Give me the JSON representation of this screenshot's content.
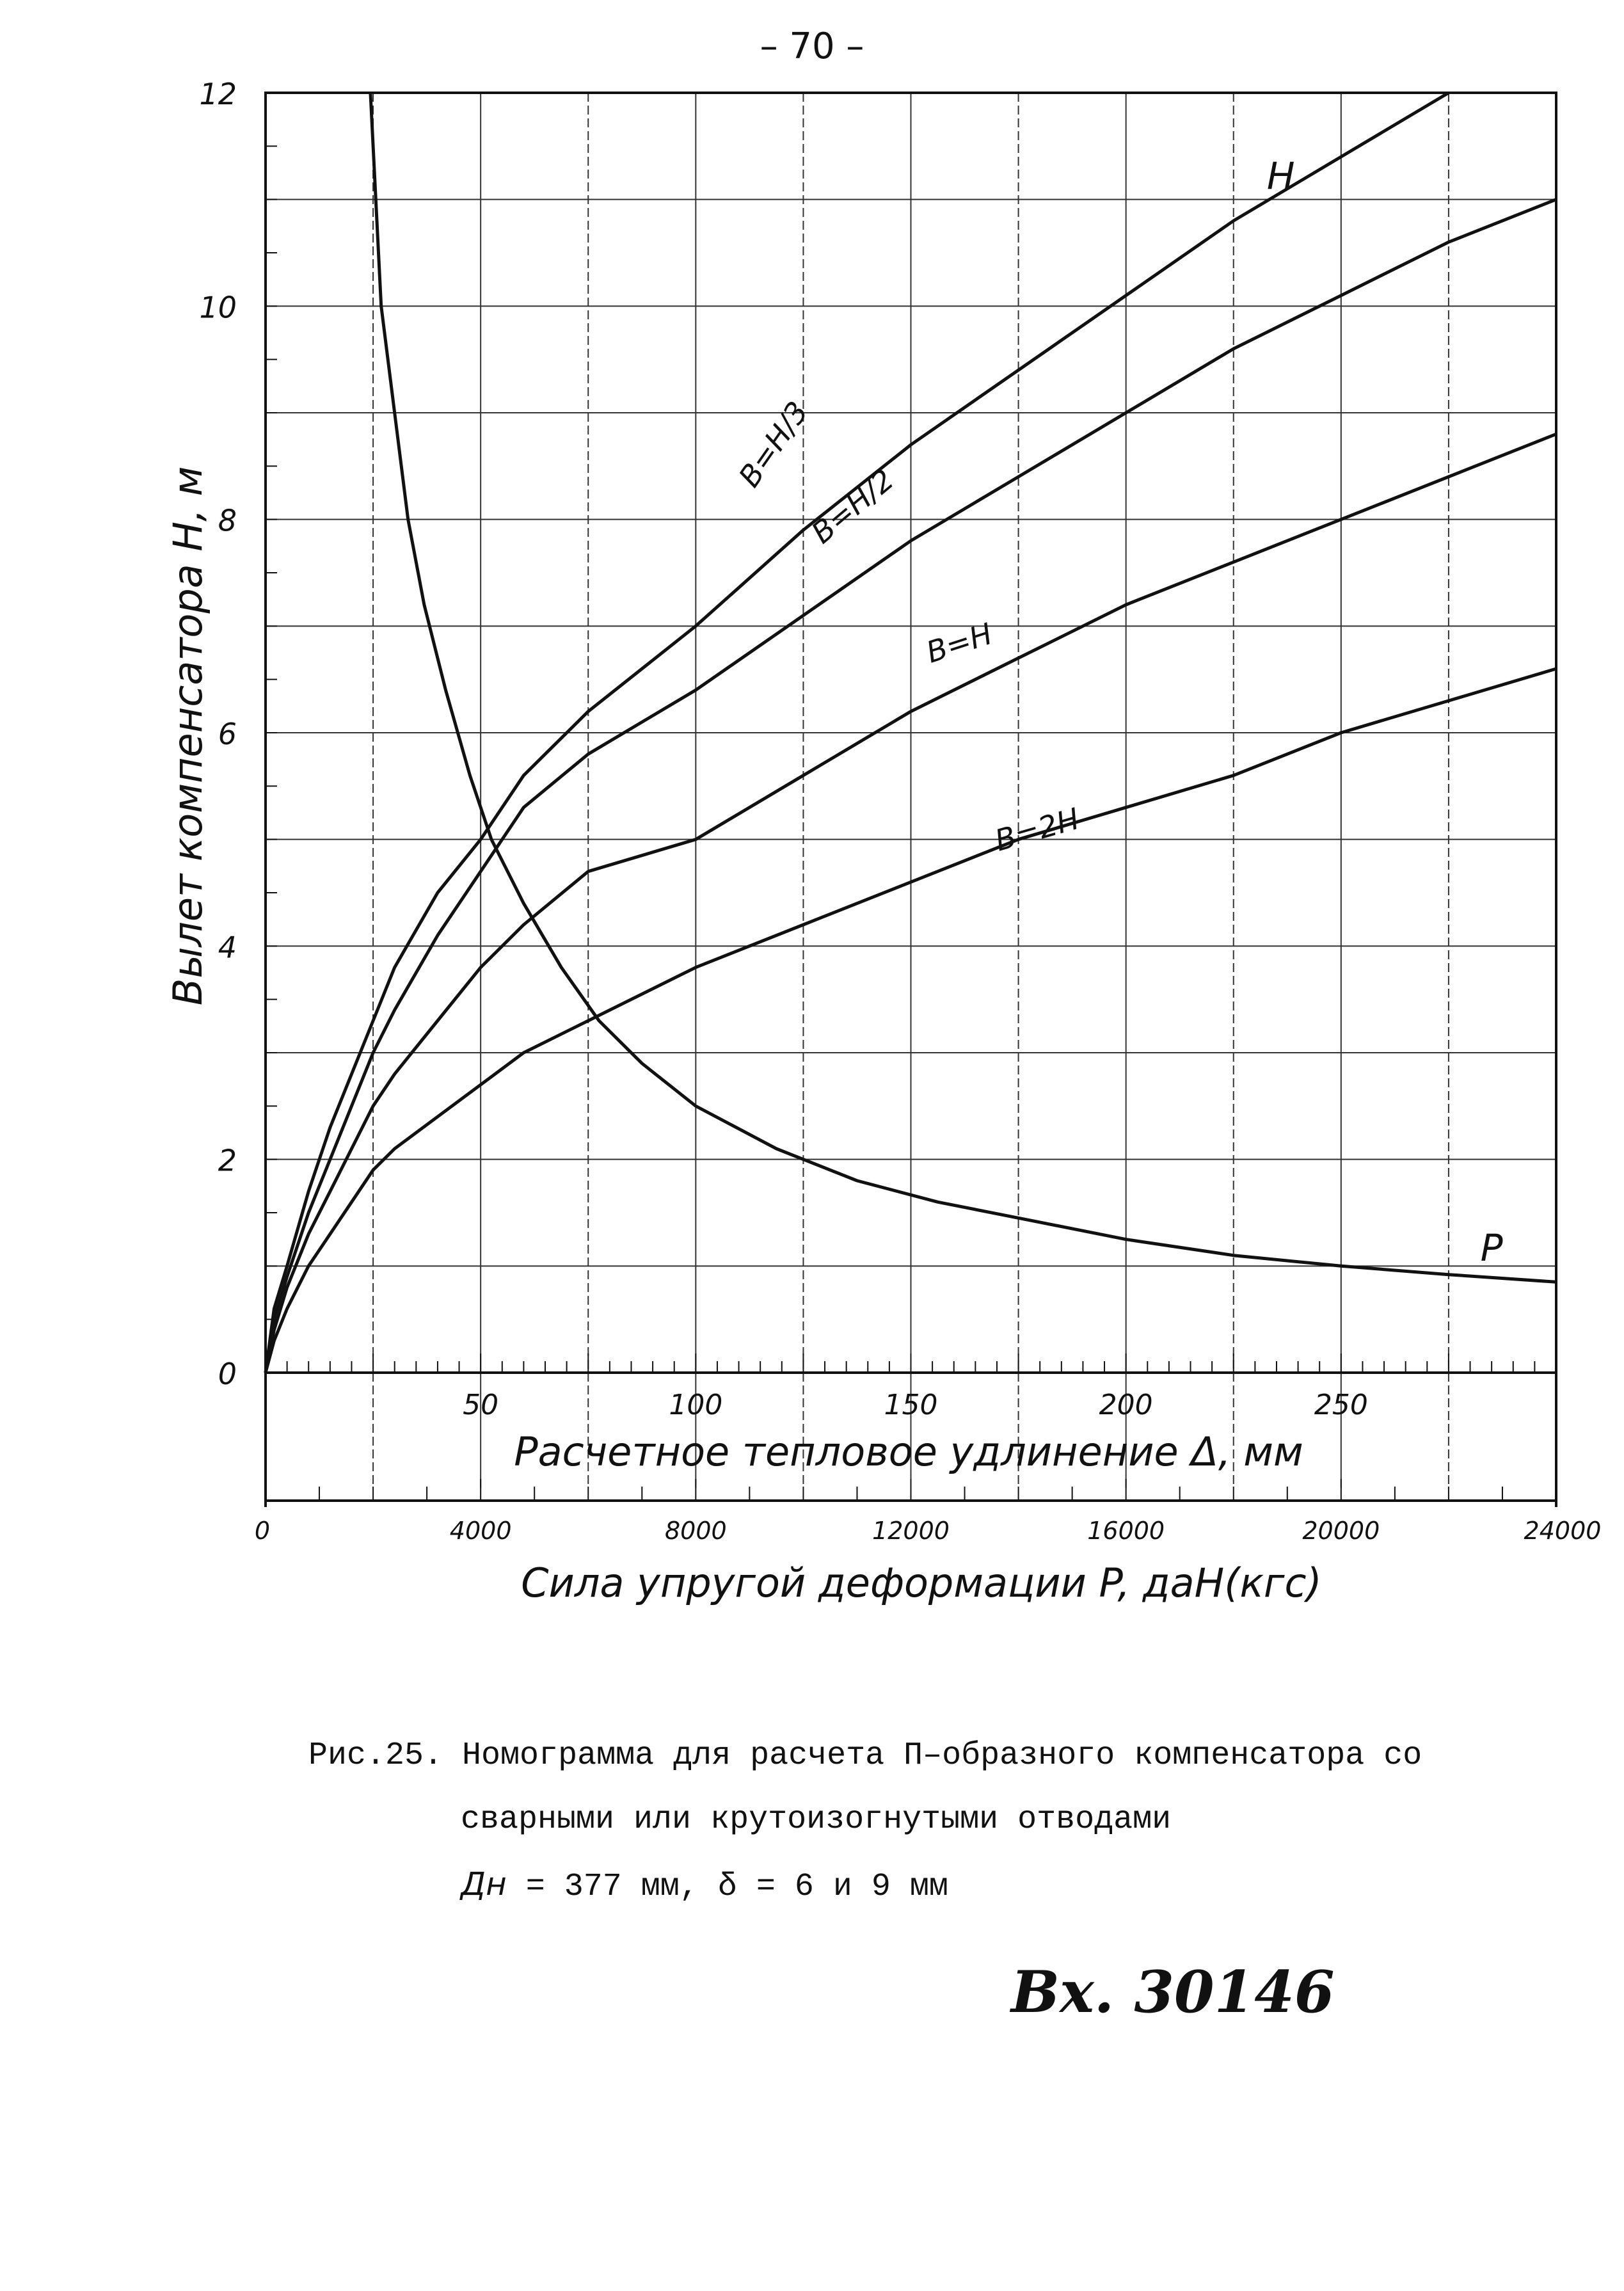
{
  "page_number": "– 70 –",
  "caption": {
    "line1": "Рис.25. Номограмма для расчета П–образного компенсатора со",
    "line2": "сварными или крутоизогнутыми отводами",
    "line3_symbol": "Дн",
    "line3_rest": " = 377 мм,  δ = 6 и 9 мм"
  },
  "inventory_number": "Вх. 30146",
  "chart_data": {
    "type": "line",
    "title": "",
    "ylabel": "Вылет компенсатора  H, м",
    "xlabel_top": "Расчетное тепловое удлинение Δ, мм",
    "xlabel_bottom": "Сила упругой деформации P, даН(кгс)",
    "y_axis": {
      "min": 0,
      "max": 12,
      "ticks": [
        "0",
        "2",
        "4",
        "6",
        "8",
        "10",
        "12"
      ]
    },
    "x_axis_delta": {
      "min": 0,
      "max": 300,
      "unit": "мм",
      "ticks": [
        "50",
        "100",
        "150",
        "200",
        "250"
      ]
    },
    "x_axis_force": {
      "min": 0,
      "max": 24000,
      "unit": "даН(кгс)",
      "ticks": [
        "0",
        "4000",
        "8000",
        "12000",
        "16000",
        "20000",
        "24000"
      ]
    },
    "grid": true,
    "curve_label_H": "H",
    "curve_label_P": "P",
    "series": [
      {
        "name": "B=H/3",
        "axis": "delta",
        "points": [
          [
            0,
            0
          ],
          [
            2,
            0.6
          ],
          [
            5,
            1.0
          ],
          [
            10,
            1.7
          ],
          [
            15,
            2.3
          ],
          [
            20,
            2.8
          ],
          [
            25,
            3.3
          ],
          [
            30,
            3.8
          ],
          [
            40,
            4.5
          ],
          [
            50,
            5.0
          ],
          [
            60,
            5.6
          ],
          [
            75,
            6.2
          ],
          [
            100,
            7.0
          ],
          [
            125,
            7.9
          ],
          [
            150,
            8.7
          ],
          [
            175,
            9.4
          ],
          [
            200,
            10.1
          ],
          [
            225,
            10.8
          ],
          [
            250,
            11.4
          ],
          [
            275,
            12.0
          ]
        ]
      },
      {
        "name": "B=H/2",
        "axis": "delta",
        "points": [
          [
            0,
            0
          ],
          [
            2,
            0.5
          ],
          [
            5,
            0.9
          ],
          [
            10,
            1.5
          ],
          [
            15,
            2.0
          ],
          [
            20,
            2.5
          ],
          [
            25,
            3.0
          ],
          [
            30,
            3.4
          ],
          [
            40,
            4.1
          ],
          [
            50,
            4.7
          ],
          [
            60,
            5.3
          ],
          [
            75,
            5.8
          ],
          [
            100,
            6.4
          ],
          [
            125,
            7.1
          ],
          [
            150,
            7.8
          ],
          [
            175,
            8.4
          ],
          [
            200,
            9.0
          ],
          [
            225,
            9.6
          ],
          [
            250,
            10.1
          ],
          [
            275,
            10.6
          ],
          [
            300,
            11.0
          ]
        ]
      },
      {
        "name": "B=H",
        "axis": "delta",
        "points": [
          [
            0,
            0
          ],
          [
            2,
            0.4
          ],
          [
            5,
            0.8
          ],
          [
            10,
            1.3
          ],
          [
            15,
            1.7
          ],
          [
            20,
            2.1
          ],
          [
            25,
            2.5
          ],
          [
            30,
            2.8
          ],
          [
            40,
            3.3
          ],
          [
            50,
            3.8
          ],
          [
            60,
            4.2
          ],
          [
            75,
            4.7
          ],
          [
            100,
            5.0
          ],
          [
            125,
            5.6
          ],
          [
            150,
            6.2
          ],
          [
            175,
            6.7
          ],
          [
            200,
            7.2
          ],
          [
            225,
            7.6
          ],
          [
            250,
            8.0
          ],
          [
            275,
            8.4
          ],
          [
            300,
            8.8
          ]
        ]
      },
      {
        "name": "B=2H",
        "axis": "delta",
        "points": [
          [
            0,
            0
          ],
          [
            2,
            0.3
          ],
          [
            5,
            0.6
          ],
          [
            10,
            1.0
          ],
          [
            15,
            1.3
          ],
          [
            20,
            1.6
          ],
          [
            25,
            1.9
          ],
          [
            30,
            2.1
          ],
          [
            40,
            2.4
          ],
          [
            50,
            2.7
          ],
          [
            60,
            3.0
          ],
          [
            75,
            3.3
          ],
          [
            100,
            3.8
          ],
          [
            125,
            4.2
          ],
          [
            150,
            4.6
          ],
          [
            175,
            5.0
          ],
          [
            200,
            5.3
          ],
          [
            225,
            5.6
          ],
          [
            250,
            6.0
          ],
          [
            275,
            6.3
          ],
          [
            300,
            6.6
          ]
        ]
      },
      {
        "name": "P",
        "axis": "force",
        "points": [
          [
            1950,
            12.0
          ],
          [
            2000,
            11.5
          ],
          [
            2150,
            10.0
          ],
          [
            2400,
            9.0
          ],
          [
            2650,
            8.0
          ],
          [
            2950,
            7.2
          ],
          [
            3350,
            6.4
          ],
          [
            3800,
            5.6
          ],
          [
            4200,
            5.0
          ],
          [
            4800,
            4.4
          ],
          [
            5500,
            3.8
          ],
          [
            6200,
            3.3
          ],
          [
            7000,
            2.9
          ],
          [
            8000,
            2.5
          ],
          [
            9500,
            2.1
          ],
          [
            11000,
            1.8
          ],
          [
            12500,
            1.6
          ],
          [
            14000,
            1.45
          ],
          [
            16000,
            1.25
          ],
          [
            18000,
            1.1
          ],
          [
            20000,
            1.0
          ],
          [
            22000,
            0.92
          ],
          [
            24000,
            0.85
          ]
        ]
      }
    ]
  }
}
